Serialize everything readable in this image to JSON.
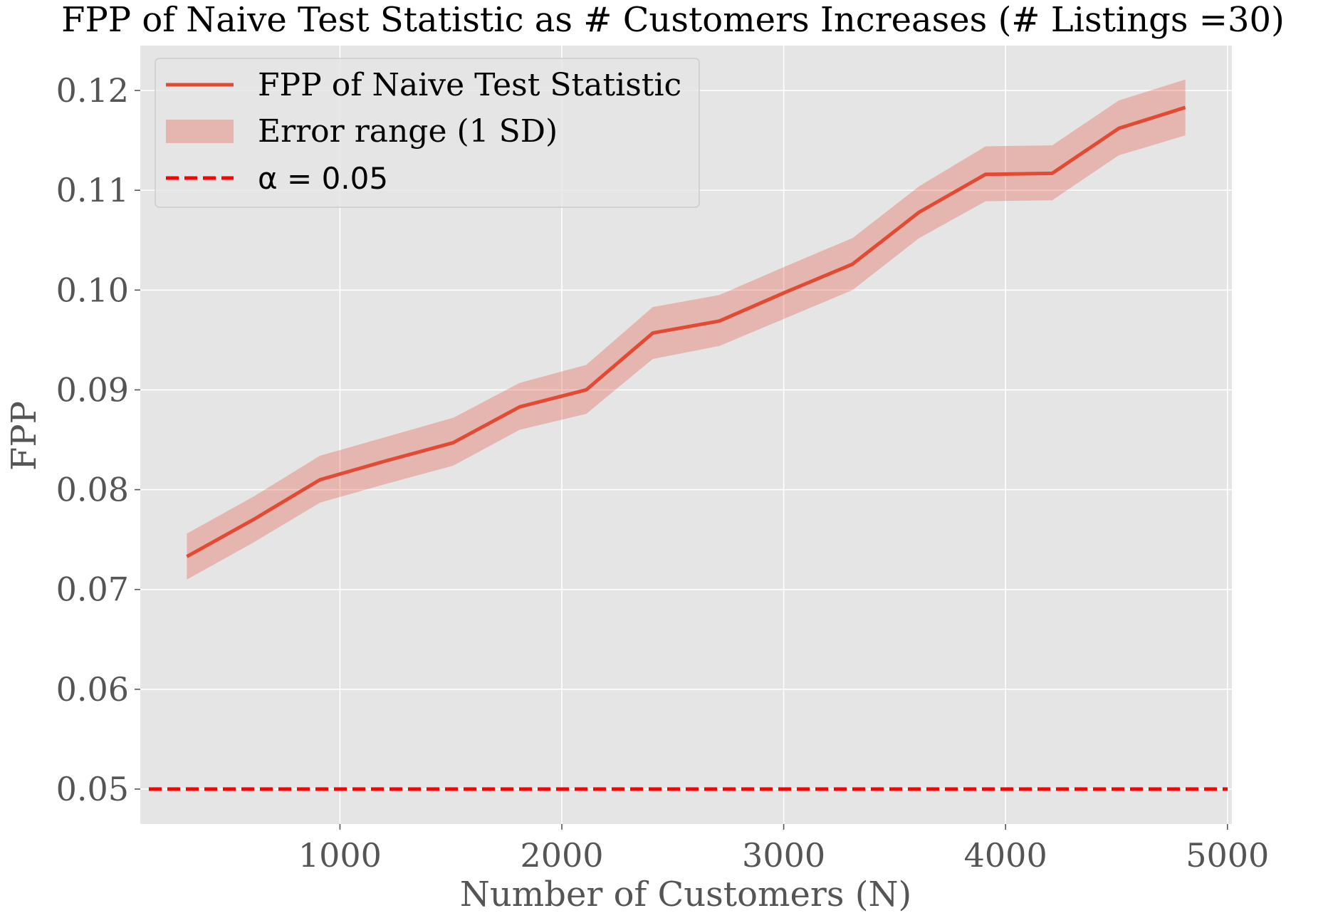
{
  "chart_data": {
    "type": "line",
    "title": "FPP of Naive Test Statistic as # Customers Increases (# Listings =30)",
    "xlabel": "Number of Customers (N)",
    "ylabel": "FPP",
    "xlim": [
      100,
      5020
    ],
    "ylim": [
      0.0465,
      0.1245
    ],
    "xticks": [
      1000,
      2000,
      3000,
      4000,
      5000
    ],
    "xtick_labels": [
      "1000",
      "2000",
      "3000",
      "4000",
      "5000"
    ],
    "yticks": [
      0.05,
      0.06,
      0.07,
      0.08,
      0.09,
      0.1,
      0.11,
      0.12
    ],
    "ytick_labels": [
      "0.05",
      "0.06",
      "0.07",
      "0.08",
      "0.09",
      "0.10",
      "0.11",
      "0.12"
    ],
    "grid": true,
    "legend_position": "top-left",
    "series": [
      {
        "name": "FPP of Naive Test Statistic",
        "kind": "line",
        "color": "#e24a33",
        "x": [
          310,
          610,
          910,
          1210,
          1510,
          1810,
          2110,
          2410,
          2710,
          3010,
          3310,
          3610,
          3910,
          4210,
          4510,
          4810
        ],
        "values": [
          0.0733,
          0.077,
          0.081,
          0.0829,
          0.0847,
          0.0883,
          0.09,
          0.0957,
          0.0969,
          0.0998,
          0.1026,
          0.1078,
          0.1116,
          0.1117,
          0.1162,
          0.1183
        ]
      },
      {
        "name": "Error range (1 SD)",
        "kind": "band",
        "color": "#e24a33",
        "opacity": 0.3,
        "x": [
          310,
          610,
          910,
          1210,
          1510,
          1810,
          2110,
          2410,
          2710,
          3010,
          3310,
          3610,
          3910,
          4210,
          4510,
          4810
        ],
        "lower": [
          0.071,
          0.0747,
          0.0787,
          0.0806,
          0.0824,
          0.086,
          0.0876,
          0.0931,
          0.0944,
          0.0972,
          0.1,
          0.1052,
          0.1089,
          0.109,
          0.1135,
          0.1155
        ],
        "upper": [
          0.0756,
          0.0793,
          0.0834,
          0.0853,
          0.0872,
          0.0907,
          0.0925,
          0.0983,
          0.0995,
          0.1024,
          0.1052,
          0.1104,
          0.1144,
          0.1145,
          0.119,
          0.1211
        ]
      },
      {
        "name": "α = 0.05",
        "kind": "hline",
        "color": "#ff0000",
        "y": 0.05
      }
    ],
    "legend": {
      "entries": [
        "FPP of Naive Test Statistic",
        "Error range (1 SD)",
        "α = 0.05"
      ]
    }
  }
}
